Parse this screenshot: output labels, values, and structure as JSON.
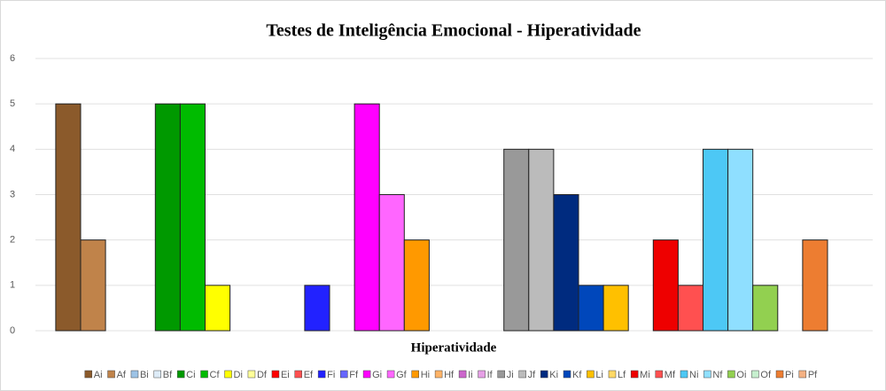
{
  "chart_data": {
    "type": "bar",
    "title": "Testes de Inteligência Emocional - Hiperatividade",
    "x_label": "Hiperatividade",
    "ylim": [
      0,
      6
    ],
    "yticks": [
      0,
      1,
      2,
      3,
      4,
      5,
      6
    ],
    "grid": true,
    "legend": "bottom",
    "series": [
      {
        "name": "Ai",
        "color": "#8B5A2B",
        "values": [
          5
        ]
      },
      {
        "name": "Af",
        "color": "#C0834A",
        "values": [
          2
        ]
      },
      {
        "name": "Bi",
        "color": "#9DC3E6",
        "values": [
          0
        ]
      },
      {
        "name": "Bf",
        "color": "#DDEBF7",
        "values": [
          0
        ]
      },
      {
        "name": "Ci",
        "color": "#009900",
        "values": [
          5
        ]
      },
      {
        "name": "Cf",
        "color": "#00BB00",
        "values": [
          5
        ]
      },
      {
        "name": "Di",
        "color": "#FFFF00",
        "values": [
          1
        ]
      },
      {
        "name": "Df",
        "color": "#FFFF99",
        "values": [
          0
        ]
      },
      {
        "name": "Ei",
        "color": "#FF0000",
        "values": [
          0
        ]
      },
      {
        "name": "Ef",
        "color": "#FF5050",
        "values": [
          0
        ]
      },
      {
        "name": "Fi",
        "color": "#2222FF",
        "values": [
          1
        ]
      },
      {
        "name": "Ff",
        "color": "#6666FF",
        "values": [
          0
        ]
      },
      {
        "name": "Gi",
        "color": "#FF00FF",
        "values": [
          5
        ]
      },
      {
        "name": "Gf",
        "color": "#FF66FF",
        "values": [
          3
        ]
      },
      {
        "name": "Hi",
        "color": "#FF9900",
        "values": [
          2
        ]
      },
      {
        "name": "Hf",
        "color": "#FFB366",
        "values": [
          0
        ]
      },
      {
        "name": "Ii",
        "color": "#CC66CC",
        "values": [
          0
        ]
      },
      {
        "name": "If",
        "color": "#E6A0E6",
        "values": [
          0
        ]
      },
      {
        "name": "Ji",
        "color": "#999999",
        "values": [
          4
        ]
      },
      {
        "name": "Jf",
        "color": "#BBBBBB",
        "values": [
          4
        ]
      },
      {
        "name": "Ki",
        "color": "#002B7F",
        "values": [
          3
        ]
      },
      {
        "name": "Kf",
        "color": "#0047BB",
        "values": [
          1
        ]
      },
      {
        "name": "Li",
        "color": "#FFC000",
        "values": [
          1
        ]
      },
      {
        "name": "Lf",
        "color": "#FFD966",
        "values": [
          0
        ]
      },
      {
        "name": "Mi",
        "color": "#EE0000",
        "values": [
          2
        ]
      },
      {
        "name": "Mf",
        "color": "#FF5050",
        "values": [
          1
        ]
      },
      {
        "name": "Ni",
        "color": "#4DC8F5",
        "values": [
          4
        ]
      },
      {
        "name": "Nf",
        "color": "#8FDFFF",
        "values": [
          4
        ]
      },
      {
        "name": "Oi",
        "color": "#92D050",
        "values": [
          1
        ]
      },
      {
        "name": "Of",
        "color": "#C6EFCE",
        "values": [
          0
        ]
      },
      {
        "name": "Pi",
        "color": "#ED7D31",
        "values": [
          2
        ]
      },
      {
        "name": "Pf",
        "color": "#F4B183",
        "values": [
          0
        ]
      }
    ]
  }
}
